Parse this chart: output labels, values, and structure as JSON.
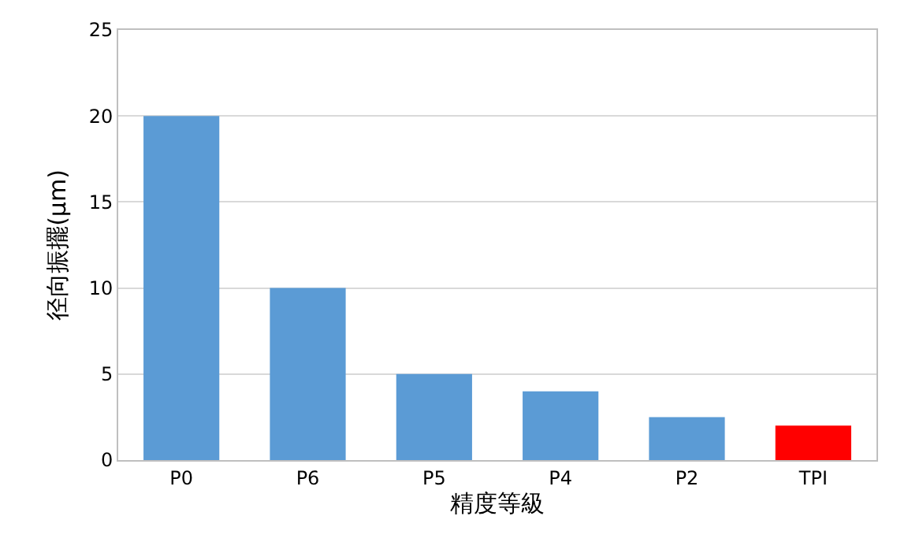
{
  "chart_data": {
    "type": "bar",
    "xlabel": "精度等級",
    "ylabel": "径向振擺(μm)",
    "categories": [
      "P0",
      "P6",
      "P5",
      "P4",
      "P2",
      "TPI"
    ],
    "values": [
      20,
      10,
      5,
      4,
      2.5,
      2
    ],
    "colors": [
      "#5b9bd5",
      "#5b9bd5",
      "#5b9bd5",
      "#5b9bd5",
      "#5b9bd5",
      "#ff0000"
    ],
    "ylim": [
      0,
      25
    ],
    "yticks": [
      0,
      5,
      10,
      15,
      20,
      25
    ],
    "grid": "y"
  }
}
